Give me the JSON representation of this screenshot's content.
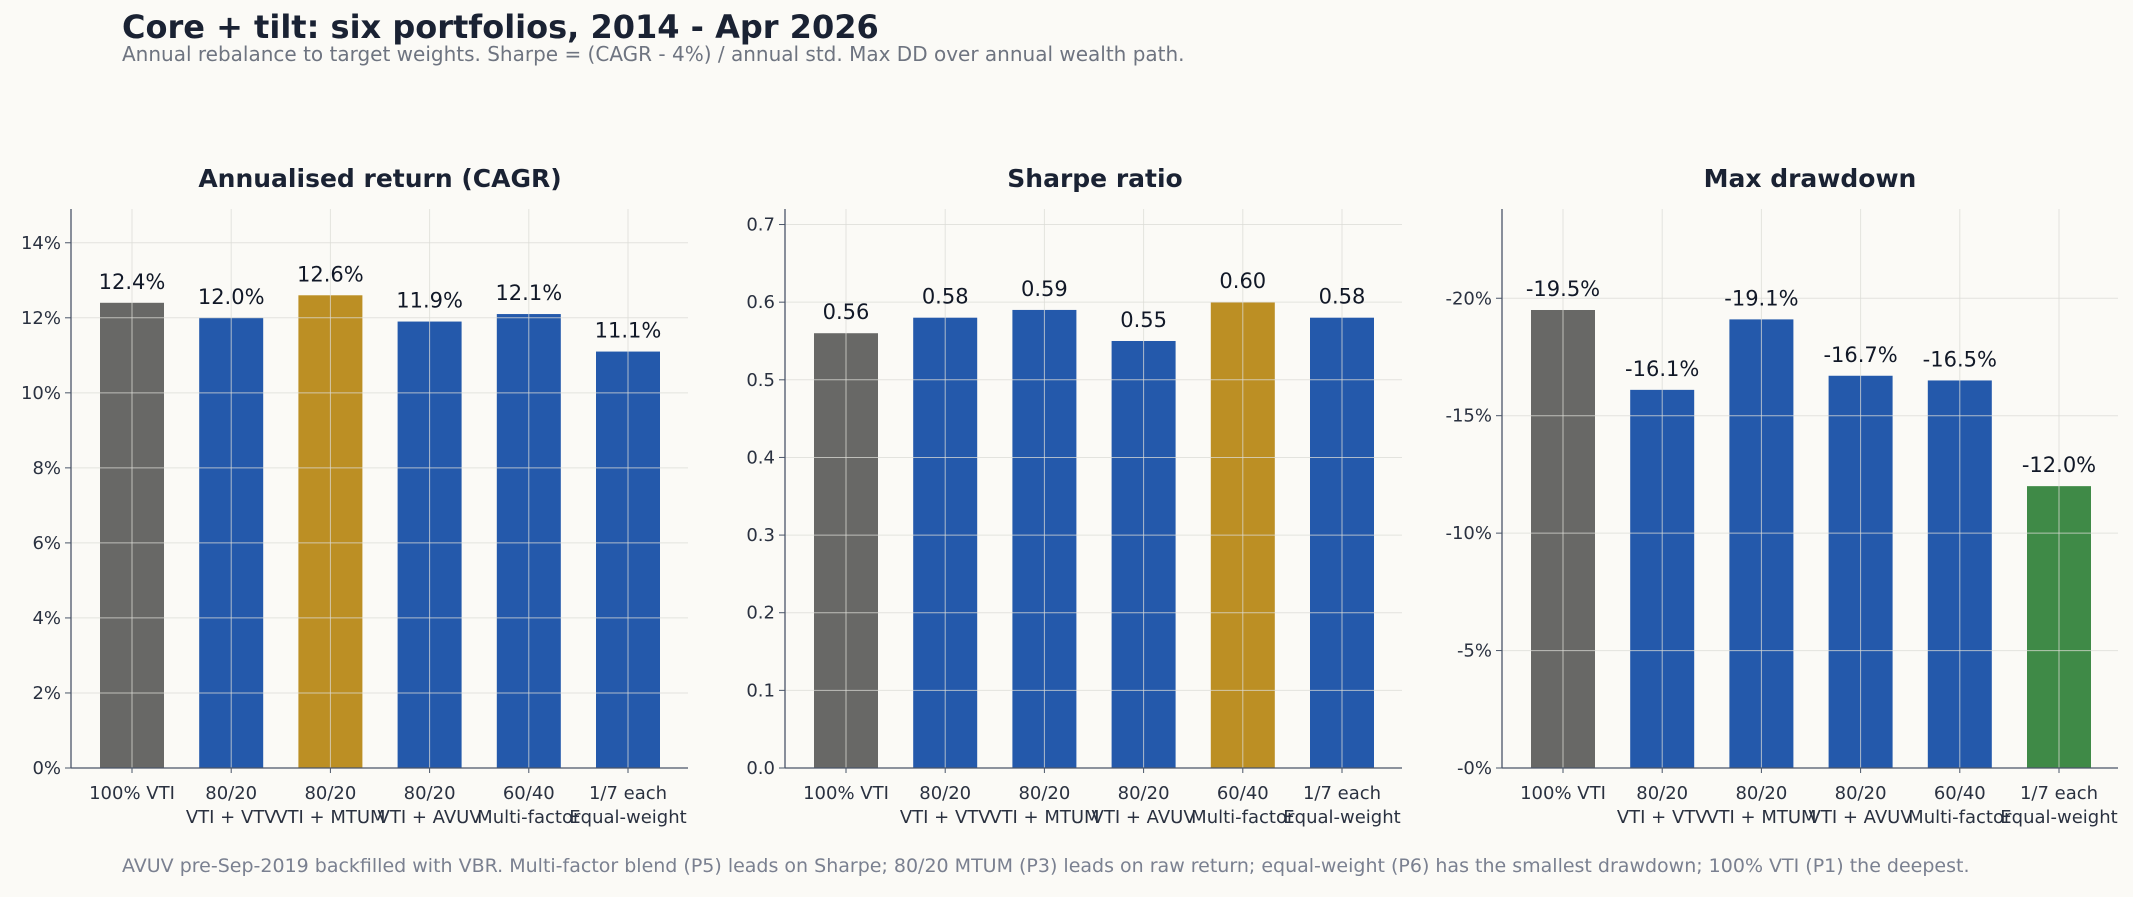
{
  "header": {
    "title": "Core + tilt: six portfolios, 2014 - Apr 2026",
    "subtitle": "Annual rebalance to target weights. Sharpe = (CAGR - 4%) / annual std. Max DD over annual wealth path."
  },
  "footnote": "AVUV pre-Sep-2019 backfilled with VBR. Multi-factor blend (P5) leads on Sharpe; 80/20 MTUM (P3) leads on raw return; equal-weight (P6) has the smallest drawdown; 100% VTI (P1) the deepest.",
  "colors": {
    "gray": "#686866",
    "blue": "#2459ab",
    "gold": "#bc8f24",
    "green": "#3f8a47",
    "axis": "#4a5568",
    "grid": "#dcdcd6"
  },
  "chart_data": [
    {
      "type": "bar",
      "title": "Annualised return (CAGR)",
      "categories": [
        [
          "100% VTI"
        ],
        [
          "80/20",
          "VTI + VTV"
        ],
        [
          "80/20",
          "VTI + MTUM"
        ],
        [
          "80/20",
          "VTI + AVUV"
        ],
        [
          "60/40",
          "Multi-factor"
        ],
        [
          "1/7 each",
          "Equal-weight"
        ]
      ],
      "values": [
        12.4,
        12.0,
        12.6,
        11.9,
        12.1,
        11.1
      ],
      "value_labels": [
        "12.4%",
        "12.0%",
        "12.6%",
        "11.9%",
        "12.1%",
        "11.1%"
      ],
      "bar_colors": [
        "gray",
        "blue",
        "gold",
        "blue",
        "blue",
        "blue"
      ],
      "ylim": [
        0,
        14.9
      ],
      "yticks": [
        0,
        2,
        4,
        6,
        8,
        10,
        12,
        14
      ],
      "ytick_labels": [
        "0%",
        "2%",
        "4%",
        "6%",
        "8%",
        "10%",
        "12%",
        "14%"
      ],
      "xlabel": "",
      "ylabel": "",
      "grid": true
    },
    {
      "type": "bar",
      "title": "Sharpe ratio",
      "categories": [
        [
          "100% VTI"
        ],
        [
          "80/20",
          "VTI + VTV"
        ],
        [
          "80/20",
          "VTI + MTUM"
        ],
        [
          "80/20",
          "VTI + AVUV"
        ],
        [
          "60/40",
          "Multi-factor"
        ],
        [
          "1/7 each",
          "Equal-weight"
        ]
      ],
      "values": [
        0.56,
        0.58,
        0.59,
        0.55,
        0.6,
        0.58
      ],
      "value_labels": [
        "0.56",
        "0.58",
        "0.59",
        "0.55",
        "0.60",
        "0.58"
      ],
      "bar_colors": [
        "gray",
        "blue",
        "blue",
        "blue",
        "gold",
        "blue"
      ],
      "ylim": [
        0,
        0.72
      ],
      "yticks": [
        0,
        0.1,
        0.2,
        0.3,
        0.4,
        0.5,
        0.6,
        0.7
      ],
      "ytick_labels": [
        "0.0",
        "0.1",
        "0.2",
        "0.3",
        "0.4",
        "0.5",
        "0.6",
        "0.7"
      ],
      "xlabel": "",
      "ylabel": "",
      "grid": true
    },
    {
      "type": "bar",
      "title": "Max drawdown",
      "categories": [
        [
          "100% VTI"
        ],
        [
          "80/20",
          "VTI + VTV"
        ],
        [
          "80/20",
          "VTI + MTUM"
        ],
        [
          "80/20",
          "VTI + AVUV"
        ],
        [
          "60/40",
          "Multi-factor"
        ],
        [
          "1/7 each",
          "Equal-weight"
        ]
      ],
      "values": [
        19.5,
        16.1,
        19.1,
        16.7,
        16.5,
        12.0
      ],
      "value_labels": [
        "-19.5%",
        "-16.1%",
        "-19.1%",
        "-16.7%",
        "-16.5%",
        "-12.0%"
      ],
      "bar_colors": [
        "gray",
        "blue",
        "blue",
        "blue",
        "blue",
        "green"
      ],
      "ylim": [
        0,
        23.8
      ],
      "yticks": [
        0,
        5,
        10,
        15,
        20
      ],
      "ytick_labels": [
        "-0%",
        "-5%",
        "-10%",
        "-15%",
        "-20%"
      ],
      "xlabel": "",
      "ylabel": "",
      "grid": true
    }
  ]
}
